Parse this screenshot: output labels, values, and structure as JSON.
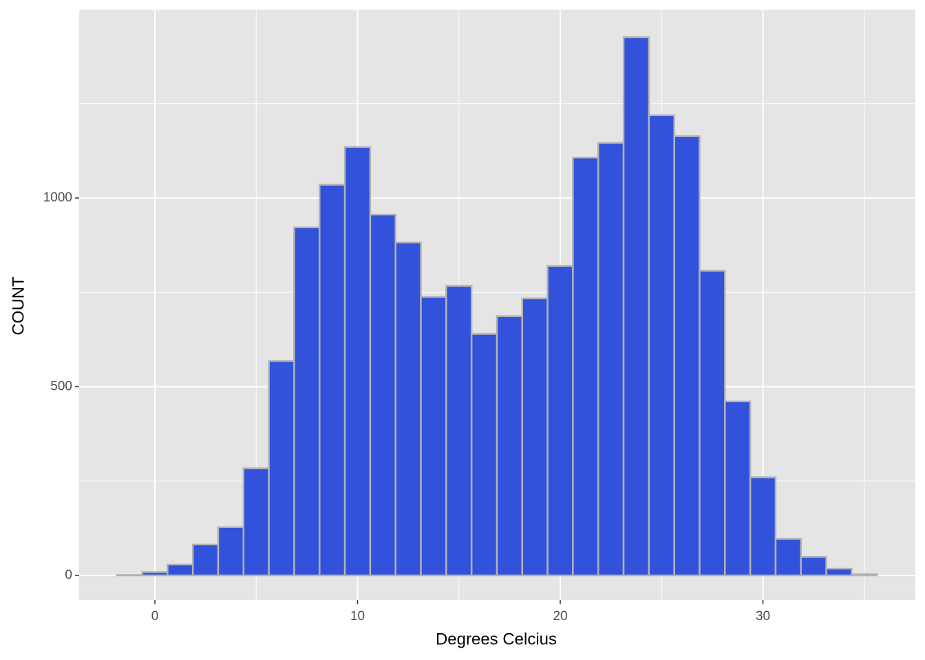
{
  "chart_data": {
    "type": "histogram",
    "xlabel": "Degrees Celcius",
    "ylabel": "COUNT",
    "bins": [
      -1.875,
      -0.625,
      0.625,
      1.875,
      3.125,
      4.375,
      5.625,
      6.875,
      8.125,
      9.375,
      10.625,
      11.875,
      13.125,
      14.375,
      15.625,
      16.875,
      18.125,
      19.375,
      20.625,
      21.875,
      23.125,
      24.375,
      25.625,
      26.875,
      28.125,
      29.375,
      30.625,
      31.875,
      33.125,
      34.375,
      35.625
    ],
    "counts": [
      1,
      9,
      29,
      82,
      128,
      284,
      568,
      922,
      1035,
      1135,
      956,
      882,
      738,
      767,
      640,
      687,
      734,
      820,
      1107,
      1146,
      1426,
      1219,
      1164,
      807,
      461,
      260,
      97,
      49,
      18,
      3
    ],
    "color": "#3352db",
    "edgecolor": "#b3b3b3",
    "xlim": [
      -3.735,
      37.52
    ],
    "ylim": [
      -65.6,
      1499
    ],
    "xticks": [
      0,
      10,
      20,
      30
    ],
    "yticks": [
      0,
      500,
      1000
    ],
    "x_minor_ticks": [
      5,
      15,
      25,
      35
    ],
    "y_minor_ticks": [
      250,
      750,
      1250
    ],
    "grid": true
  }
}
